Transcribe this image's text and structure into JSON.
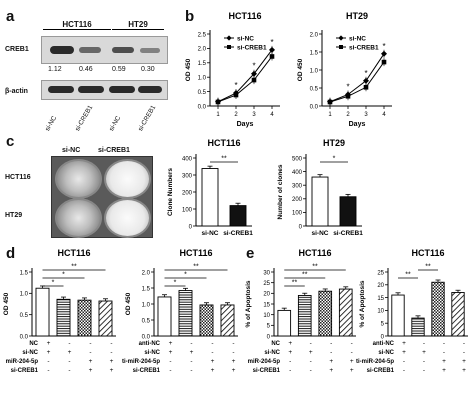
{
  "panels": {
    "a": "a",
    "b": "b",
    "c": "c",
    "d": "d",
    "e": "e"
  },
  "western_blot": {
    "cell_lines": [
      "HCT116",
      "HT29"
    ],
    "rows": [
      "CREB1",
      "β-actin"
    ],
    "ratios": [
      "1.12",
      "0.46",
      "0.59",
      "0.30"
    ],
    "lane_labels": [
      "si-NC",
      "si-CREB1",
      "si-NC",
      "si-CREB1"
    ]
  },
  "colony": {
    "columns": [
      "si-NC",
      "si-CREB1"
    ],
    "rows": [
      "HCT116",
      "HT29"
    ]
  },
  "chart_data": [
    {
      "type": "line",
      "title": "HCT116",
      "xlabel": "Days",
      "ylabel": "OD 450",
      "x": [
        1,
        2,
        3,
        4
      ],
      "ylim": [
        0.0,
        2.5
      ],
      "yticks": [
        "0.0",
        "0.5",
        "1.0",
        "1.5",
        "2.0",
        "2.5"
      ],
      "series": [
        {
          "name": "si-NC",
          "values": [
            0.15,
            0.45,
            1.12,
            1.95
          ],
          "marker": "diamond"
        },
        {
          "name": "si-CREB1",
          "values": [
            0.14,
            0.38,
            0.9,
            1.72
          ],
          "marker": "square"
        }
      ],
      "annotations": [
        "*",
        "*",
        "*"
      ]
    },
    {
      "type": "line",
      "title": "HT29",
      "xlabel": "Days",
      "ylabel": "OD 450",
      "x": [
        1,
        2,
        3,
        4
      ],
      "ylim": [
        0.0,
        2.0
      ],
      "yticks": [
        "0.0",
        "0.5",
        "1.0",
        "1.5",
        "2.0"
      ],
      "series": [
        {
          "name": "si-NC",
          "values": [
            0.12,
            0.32,
            0.7,
            1.45
          ],
          "marker": "diamond"
        },
        {
          "name": "si-CREB1",
          "values": [
            0.11,
            0.27,
            0.52,
            1.22
          ],
          "marker": "square"
        }
      ],
      "annotations": [
        "*",
        "*",
        "*"
      ]
    },
    {
      "type": "bar",
      "title": "HCT116",
      "ylabel": "Clone Numbers",
      "categories": [
        "si-NC",
        "si-CREB1"
      ],
      "values": [
        338,
        120
      ],
      "ylim": [
        0,
        400
      ],
      "yticks": [
        "0",
        "100",
        "200",
        "300",
        "400"
      ],
      "fills": [
        "white",
        "solid"
      ],
      "annotations": [
        "**"
      ]
    },
    {
      "type": "bar",
      "title": "HT29",
      "ylabel": "Number of clones",
      "categories": [
        "si-NC",
        "si-CREB1"
      ],
      "values": [
        360,
        215
      ],
      "ylim": [
        0,
        500
      ],
      "yticks": [
        "0",
        "100",
        "200",
        "300",
        "400",
        "500"
      ],
      "fills": [
        "white",
        "solid"
      ],
      "annotations": [
        "*"
      ]
    },
    {
      "type": "bar",
      "title": "HCT116",
      "ylabel": "OD 450",
      "values": [
        1.12,
        0.86,
        0.84,
        0.82
      ],
      "ylim": [
        0.0,
        1.5
      ],
      "yticks": [
        "0.0",
        "0.5",
        "1.0",
        "1.5"
      ],
      "fills": [
        "white",
        "hlines",
        "check",
        "diag"
      ],
      "row_labels": [
        "NC",
        "si-NC",
        "miR-204-5p",
        "si-CREB1"
      ],
      "signs": [
        [
          "+",
          "-",
          "-",
          "-"
        ],
        [
          "+",
          "+",
          "-",
          "-"
        ],
        [
          "-",
          "-",
          "+",
          "+"
        ],
        [
          "-",
          "-",
          "+",
          "+"
        ]
      ],
      "annotations": [
        "**",
        "*",
        "*"
      ]
    },
    {
      "type": "bar",
      "title": "HCT116",
      "ylabel": "OD 450",
      "values": [
        1.22,
        1.42,
        0.97,
        0.97
      ],
      "ylim": [
        0.0,
        2.0
      ],
      "yticks": [
        "0.0",
        "0.5",
        "1.0",
        "1.5",
        "2.0"
      ],
      "fills": [
        "white",
        "hlines",
        "check",
        "diag"
      ],
      "row_labels": [
        "anti-NC",
        "si-NC",
        "anti-miR-204-5p",
        "si-CREB1"
      ],
      "signs": [
        [
          "+",
          "-",
          "-",
          "-"
        ],
        [
          "+",
          "+",
          "-",
          "-"
        ],
        [
          "-",
          "-",
          "+",
          "+"
        ],
        [
          "-",
          "-",
          "+",
          "+"
        ]
      ],
      "annotations": [
        "**",
        "*",
        "*"
      ]
    },
    {
      "type": "bar",
      "title": "HCT116",
      "ylabel": "% of Apoptosis",
      "values": [
        12,
        19,
        21,
        22
      ],
      "ylim": [
        0,
        30
      ],
      "yticks": [
        "0",
        "5",
        "10",
        "15",
        "20",
        "25",
        "30"
      ],
      "fills": [
        "white",
        "hlines",
        "check",
        "diag"
      ],
      "row_labels": [
        "NC",
        "si-NC",
        "miR-204-5p",
        "si-CREB1"
      ],
      "signs": [
        [
          "+",
          "-",
          "-",
          "-"
        ],
        [
          "+",
          "+",
          "-",
          "-"
        ],
        [
          "-",
          "-",
          "+",
          "+"
        ],
        [
          "-",
          "-",
          "+",
          "+"
        ]
      ],
      "annotations": [
        "**",
        "**",
        "**"
      ]
    },
    {
      "type": "bar",
      "title": "HCT116",
      "ylabel": "% of Apoptosis",
      "values": [
        16,
        7,
        21,
        17
      ],
      "ylim": [
        0,
        25
      ],
      "yticks": [
        "0",
        "5",
        "10",
        "15",
        "20",
        "25"
      ],
      "fills": [
        "white",
        "hlines",
        "check",
        "diag"
      ],
      "row_labels": [
        "anti-NC",
        "si-NC",
        "anti-miR-204-5p",
        "si-CREB1"
      ],
      "signs": [
        [
          "+",
          "-",
          "-",
          "-"
        ],
        [
          "+",
          "+",
          "-",
          "-"
        ],
        [
          "-",
          "-",
          "+",
          "+"
        ],
        [
          "-",
          "-",
          "+",
          "+"
        ]
      ],
      "annotations": [
        "**",
        "**"
      ]
    }
  ]
}
